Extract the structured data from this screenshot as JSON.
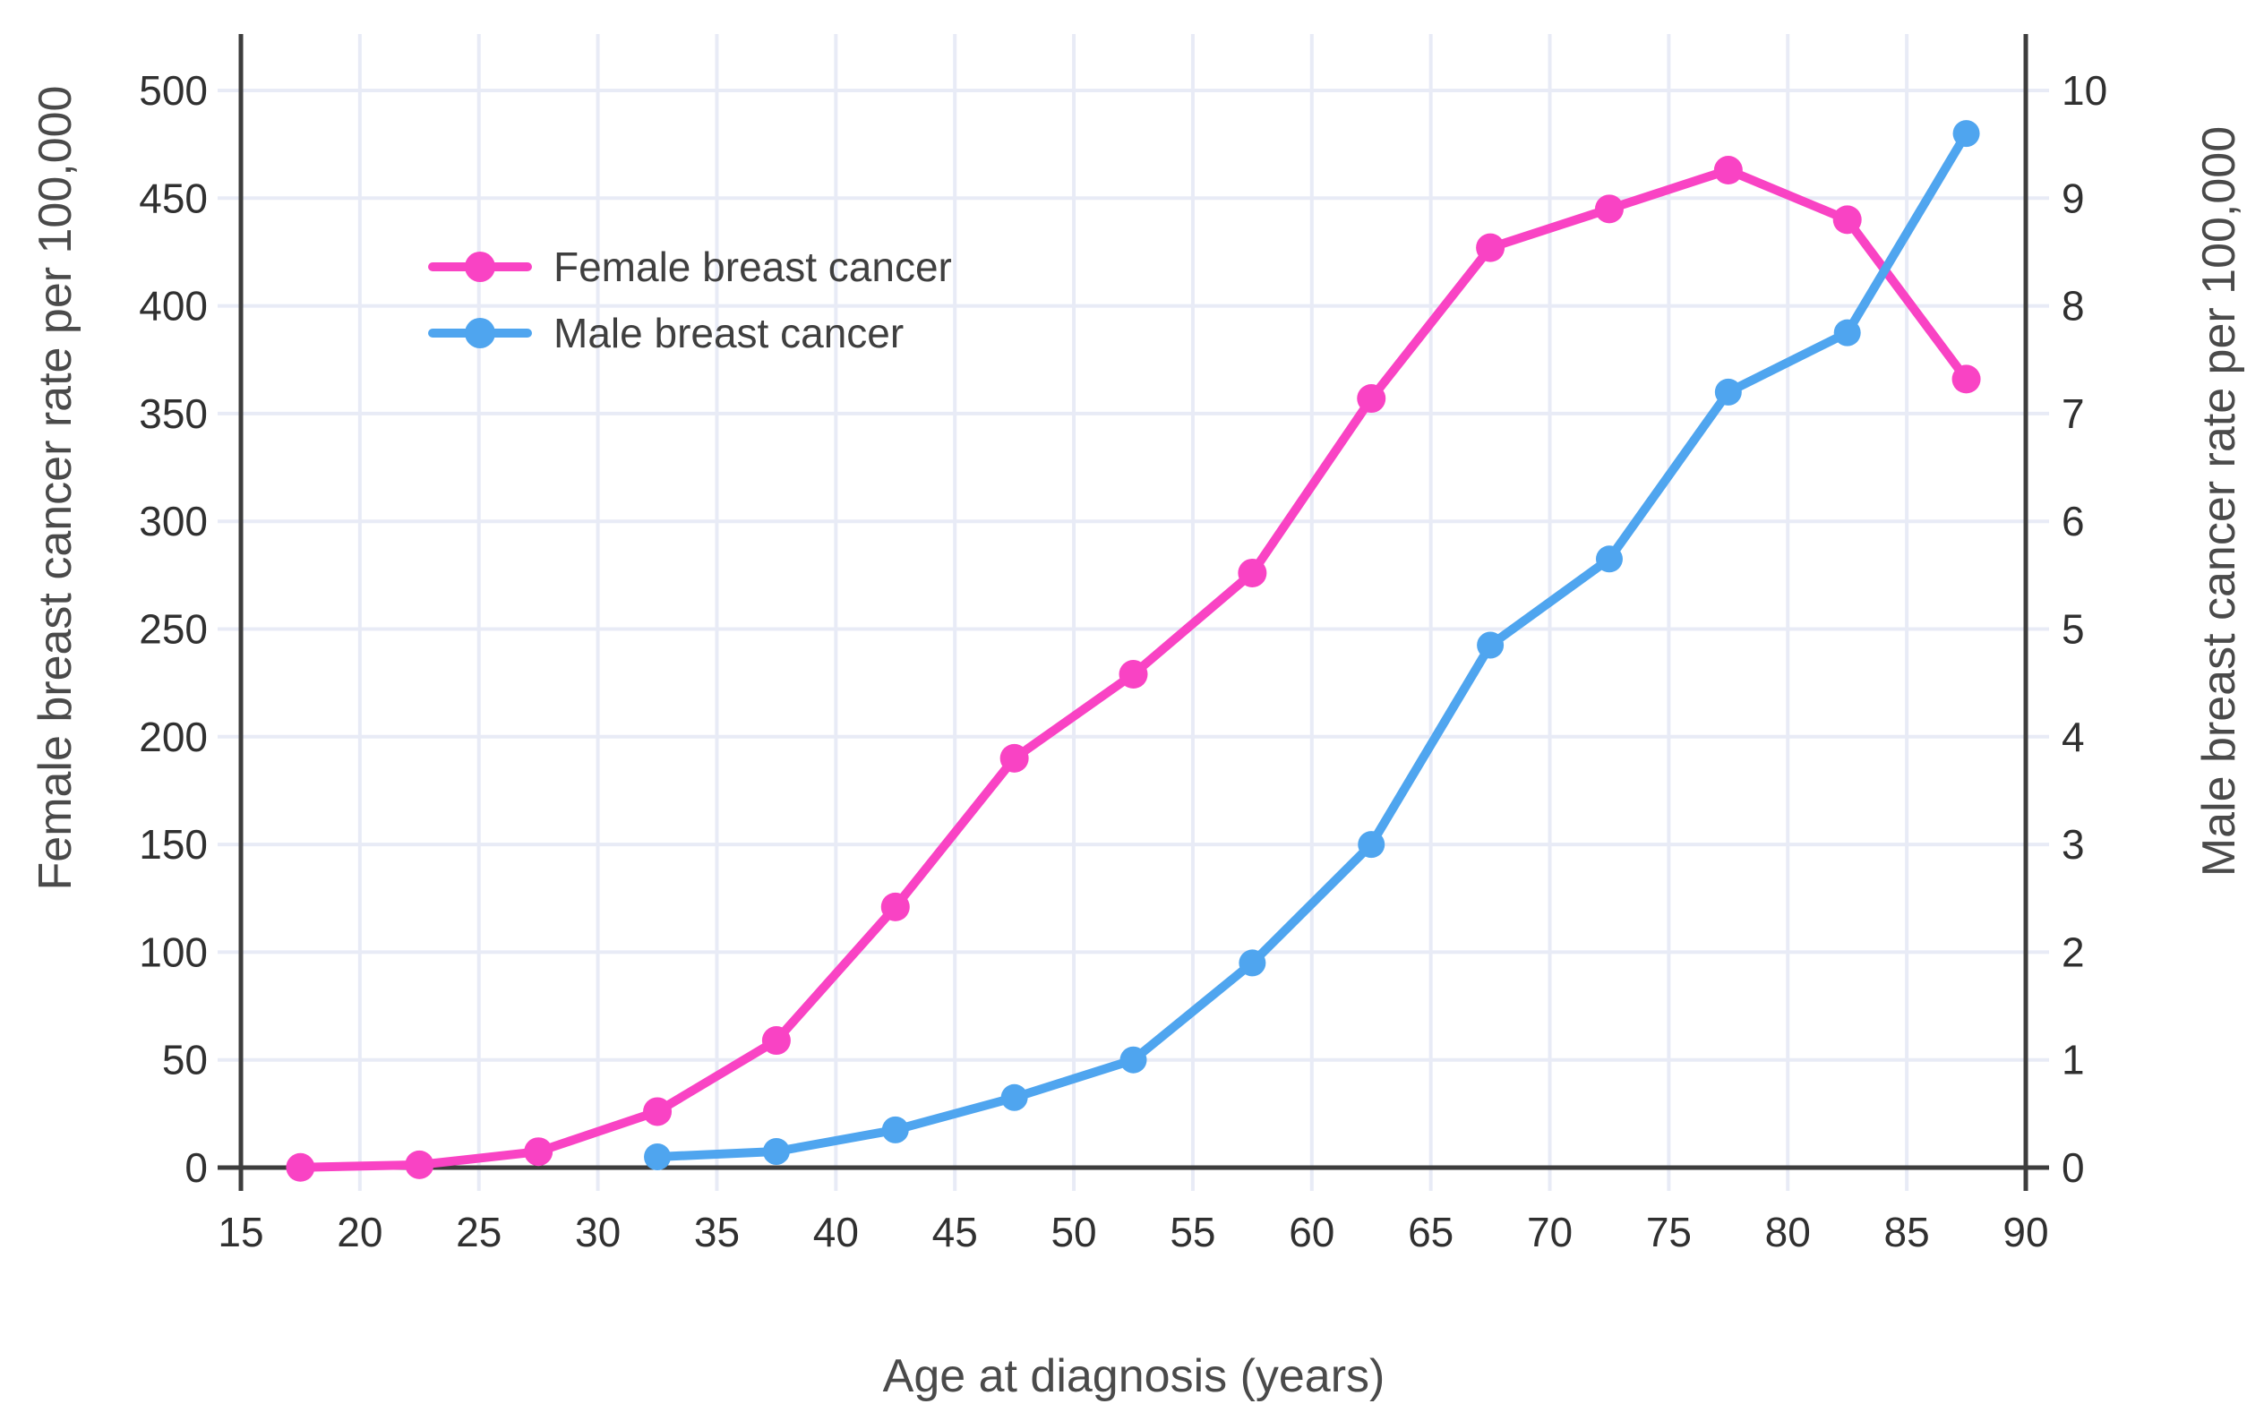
{
  "chart_data": {
    "type": "line",
    "xlabel": "Age at diagnosis (years)",
    "ylabel_left": "Female breast cancer rate per 100,000",
    "ylabel_right": "Male breast cancer rate per 100,000",
    "x_ticks": [
      15,
      20,
      25,
      30,
      35,
      40,
      45,
      50,
      55,
      60,
      65,
      70,
      75,
      80,
      85,
      90
    ],
    "y_left_ticks": [
      0,
      50,
      100,
      150,
      200,
      250,
      300,
      350,
      400,
      450,
      500
    ],
    "y_right_ticks": [
      0,
      1,
      2,
      3,
      4,
      5,
      6,
      7,
      8,
      9,
      10
    ],
    "x_range": [
      15,
      90
    ],
    "y_left_range": [
      0,
      500
    ],
    "y_right_range": [
      0,
      10
    ],
    "grid": true,
    "legend_position": "inside-upper-left",
    "series": [
      {
        "name": "Female breast cancer",
        "axis": "left",
        "color": "#f943c4",
        "x": [
          17.5,
          22.5,
          27.5,
          32.5,
          37.5,
          42.5,
          47.5,
          52.5,
          57.5,
          62.5,
          67.5,
          72.5,
          77.5,
          82.5,
          87.5
        ],
        "values": [
          0.1,
          1.3,
          7.4,
          26,
          59,
          121,
          190,
          229,
          276,
          357,
          427,
          445,
          463,
          440,
          366
        ]
      },
      {
        "name": "Male breast cancer",
        "axis": "right",
        "color": "#4fa5ef",
        "x": [
          32.5,
          37.5,
          42.5,
          47.5,
          52.5,
          57.5,
          62.5,
          67.5,
          72.5,
          77.5,
          82.5,
          87.5
        ],
        "values": [
          0.1,
          0.15,
          0.35,
          0.65,
          1.0,
          1.9,
          3.0,
          4.85,
          5.65,
          7.2,
          7.75,
          9.6
        ]
      }
    ],
    "style": {
      "grid_color": "#e8ebf6",
      "axis_color": "#3d3d3d",
      "tick_label_color": "#303030",
      "axis_title_color": "#4a4a4a",
      "legend_text_color": "#3f3f3f",
      "background": "#ffffff"
    }
  }
}
